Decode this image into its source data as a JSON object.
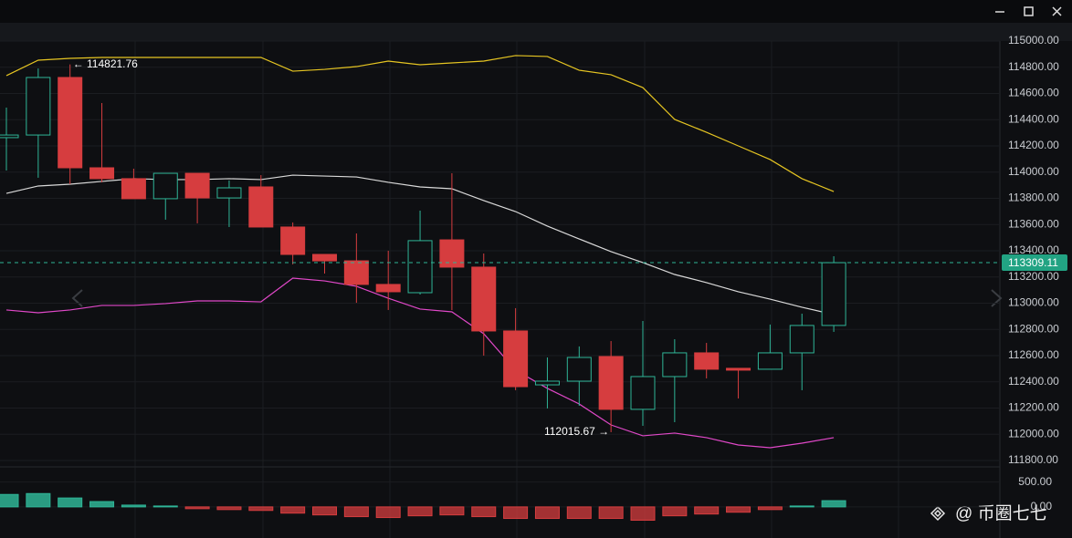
{
  "chart_data": {
    "type": "candlestick",
    "candles": {
      "open": [
        114263,
        114283,
        114722,
        114033,
        113950,
        113797,
        113991,
        113803,
        113887,
        113581,
        113372,
        113323,
        113143,
        113080,
        113483,
        113275,
        112788,
        112377,
        112405,
        112593,
        112190,
        112440,
        112621,
        112503,
        112496,
        112621,
        112830
      ],
      "high": [
        114492,
        114791,
        114821.76,
        114527,
        114026,
        113991,
        113991,
        113936,
        113977,
        113616,
        113372,
        113532,
        113400,
        113706,
        113991,
        113379,
        112962,
        112586,
        112670,
        112711,
        112864,
        112725,
        112697,
        112503,
        112837,
        112920,
        113358
      ],
      "low": [
        114012,
        113957,
        113908,
        113922,
        113797,
        113637,
        113609,
        113581,
        113581,
        113296,
        113226,
        113003,
        112948,
        113066,
        112948,
        112600,
        112336,
        112197,
        112217,
        112015.67,
        112064,
        112092,
        112426,
        112273,
        112496,
        112336,
        112781
      ],
      "close": [
        114283,
        114722,
        114033,
        113950,
        113797,
        113991,
        113803,
        113880,
        113581,
        113372,
        113323,
        113143,
        113087,
        113477,
        113275,
        112788,
        112363,
        112405,
        112586,
        112190,
        112440,
        112621,
        112496,
        112489,
        112621,
        112830,
        113309.11
      ]
    },
    "up_color": "#2fb597",
    "down_color": "#d63d3f",
    "overlays": [
      {
        "color": "#e6c522",
        "values": [
          114736,
          114854,
          114868,
          114875,
          114875,
          114875,
          114875,
          114875,
          114875,
          114770,
          114784,
          114805,
          114847,
          114819,
          114833,
          114847,
          114889,
          114882,
          114777,
          114743,
          114645,
          114402,
          114304,
          114200,
          114096,
          113950,
          113852
        ]
      },
      {
        "color": "#d9d9d9",
        "values": [
          113838,
          113894,
          113908,
          113929,
          113950,
          113943,
          113943,
          113950,
          113943,
          113977,
          113970,
          113963,
          113922,
          113887,
          113873,
          113783,
          113699,
          113588,
          113490,
          113393,
          113310,
          113219,
          113157,
          113087,
          113031,
          112969,
          112913
        ]
      },
      {
        "color": "#e048c8",
        "values": [
          112948,
          112927,
          112948,
          112983,
          112983,
          112997,
          113017,
          113017,
          113010,
          113191,
          113170,
          113129,
          113038,
          112955,
          112934,
          112767,
          112489,
          112350,
          112231,
          112071,
          111988,
          112009,
          111974,
          111918,
          111897,
          111932,
          111974
        ]
      }
    ],
    "ylim": [
      111765,
      115000
    ],
    "yticks": [
      {
        "value": 115000,
        "label": "115000.00"
      },
      {
        "value": 114800,
        "label": "114800.00"
      },
      {
        "value": 114600,
        "label": "114600.00"
      },
      {
        "value": 114400,
        "label": "114400.00"
      },
      {
        "value": 114200,
        "label": "114200.00"
      },
      {
        "value": 114000,
        "label": "114000.00"
      },
      {
        "value": 113800,
        "label": "113800.00"
      },
      {
        "value": 113600,
        "label": "113600.00"
      },
      {
        "value": 113400,
        "label": "113400.00"
      },
      {
        "value": 113200,
        "label": "113200.00"
      },
      {
        "value": 113000,
        "label": "113000.00"
      },
      {
        "value": 112800,
        "label": "112800.00"
      },
      {
        "value": 112600,
        "label": "112600.00"
      },
      {
        "value": 112400,
        "label": "112400.00"
      },
      {
        "value": 112200,
        "label": "112200.00"
      },
      {
        "value": 112000,
        "label": "112000.00"
      },
      {
        "value": 111800,
        "label": "111800.00"
      }
    ],
    "grid": true,
    "high_label": "← 114821.76",
    "low_label": "112015.67 →",
    "last_price_label": "113309.11",
    "macd": {
      "values": [
        250,
        268,
        179,
        107,
        36,
        18,
        -36,
        -54,
        -71,
        -125,
        -161,
        -196,
        -214,
        -179,
        -161,
        -196,
        -232,
        -232,
        -232,
        -232,
        -268,
        -179,
        -143,
        -107,
        -54,
        18,
        125
      ],
      "ylim": [
        -625,
        804
      ],
      "yticks": [
        {
          "value": 500,
          "label": "500.00"
        },
        {
          "value": 0,
          "label": "0.00"
        }
      ]
    },
    "watermark": "@ 币圈七七"
  }
}
